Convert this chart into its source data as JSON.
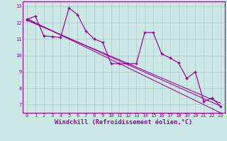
{
  "xlabel": "Windchill (Refroidissement éolien,°C)",
  "bg_color": "#cce8e4",
  "line_color": "#990099",
  "grid_color": "#aacccc",
  "x": [
    0,
    1,
    2,
    3,
    4,
    5,
    6,
    7,
    8,
    9,
    10,
    11,
    12,
    13,
    14,
    15,
    16,
    17,
    18,
    19,
    20,
    21,
    22,
    23
  ],
  "y_main": [
    12.2,
    12.4,
    11.2,
    11.15,
    11.1,
    12.9,
    12.5,
    11.5,
    11.0,
    10.8,
    9.5,
    9.5,
    9.5,
    9.5,
    11.4,
    11.4,
    10.1,
    9.85,
    9.55,
    8.6,
    9.0,
    7.2,
    7.4,
    6.9
  ],
  "y_reg1": [
    12.25,
    12.0,
    11.75,
    11.5,
    11.25,
    11.0,
    10.75,
    10.5,
    10.25,
    10.0,
    9.75,
    9.5,
    9.25,
    9.0,
    8.75,
    8.5,
    8.25,
    8.0,
    7.75,
    7.5,
    7.25,
    7.0,
    6.75,
    6.5
  ],
  "y_reg2": [
    12.2,
    11.97,
    11.74,
    11.51,
    11.28,
    11.05,
    10.82,
    10.59,
    10.36,
    10.13,
    9.9,
    9.67,
    9.44,
    9.21,
    8.98,
    8.75,
    8.52,
    8.29,
    8.06,
    7.83,
    7.6,
    7.37,
    7.14,
    6.91
  ],
  "y_reg3": [
    12.15,
    11.93,
    11.71,
    11.49,
    11.27,
    11.05,
    10.83,
    10.61,
    10.39,
    10.17,
    9.95,
    9.73,
    9.51,
    9.29,
    9.07,
    8.85,
    8.63,
    8.41,
    8.19,
    7.97,
    7.75,
    7.53,
    7.31,
    7.09
  ],
  "xlim": [
    -0.5,
    23.5
  ],
  "ylim": [
    6.5,
    13.3
  ],
  "yticks": [
    7,
    8,
    9,
    10,
    11,
    12,
    13
  ],
  "xticks": [
    0,
    1,
    2,
    3,
    4,
    5,
    6,
    7,
    8,
    9,
    10,
    11,
    12,
    13,
    14,
    15,
    16,
    17,
    18,
    19,
    20,
    21,
    22,
    23
  ],
  "tick_fontsize": 5.0,
  "xlabel_fontsize": 6.2
}
